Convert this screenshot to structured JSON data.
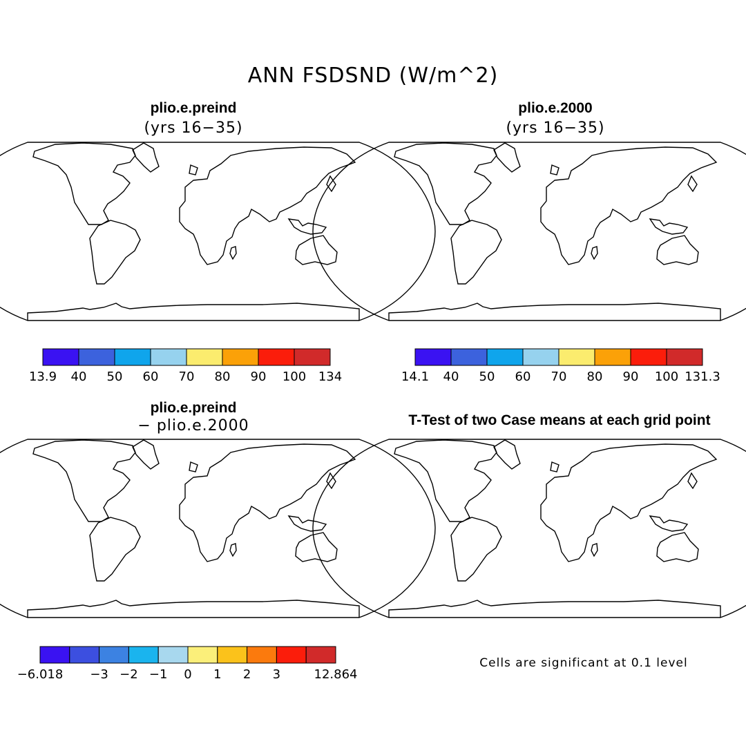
{
  "figure": {
    "title": "ANN FSDSND (W/m^2)",
    "panels": [
      {
        "id": "case1",
        "title": "plio.e.preind",
        "subtitle": "(yrs 16−35)"
      },
      {
        "id": "case2",
        "title": "plio.e.2000",
        "subtitle": "(yrs 16−35)"
      },
      {
        "id": "diff",
        "title": "plio.e.preind",
        "subtitle": "− plio.e.2000"
      },
      {
        "id": "ttest",
        "title": "T-Test of two Case means at each grid point"
      }
    ],
    "colorbars": {
      "case1": {
        "labels": [
          "13.9",
          "40",
          "50",
          "60",
          "70",
          "80",
          "90",
          "100",
          "134"
        ],
        "colors": [
          "#3a12f2",
          "#3c62dd",
          "#0fa5ec",
          "#96d2ee",
          "#fbec6e",
          "#fba108",
          "#fb1d0b",
          "#d12a2a"
        ]
      },
      "case2": {
        "labels": [
          "14.1",
          "40",
          "50",
          "60",
          "70",
          "80",
          "90",
          "100",
          "131.3"
        ],
        "colors": [
          "#3a12f2",
          "#3c62dd",
          "#0fa5ec",
          "#96d2ee",
          "#fbec6e",
          "#fba108",
          "#fb1d0b",
          "#d12a2a"
        ]
      },
      "diff": {
        "labels": [
          "−6.018",
          "",
          "−3",
          "−2",
          "−1",
          "0",
          "1",
          "2",
          "3",
          "",
          "12.864"
        ],
        "colors": [
          "#3a12f2",
          "#3c4fe0",
          "#3c82e2",
          "#1ab4ee",
          "#a8d8ee",
          "#fbef7a",
          "#fbc21b",
          "#fb7a0d",
          "#fb1d0b",
          "#d12a2a"
        ]
      }
    },
    "significance_color": "#ff0000",
    "coastline_color": "#000000",
    "note": "Cells are significant at 0.1 level"
  }
}
